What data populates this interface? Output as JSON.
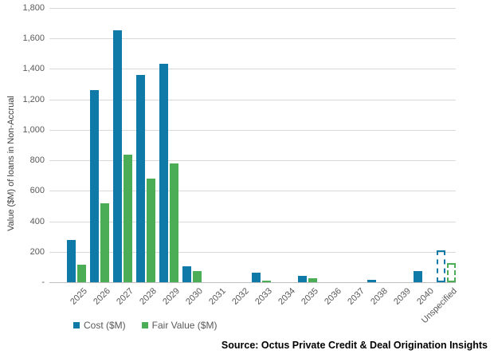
{
  "chart_data": {
    "type": "bar",
    "title": "",
    "xlabel": "",
    "ylabel": "Value ($M) of loans in Non-Accrual",
    "ylim": [
      0,
      1800
    ],
    "ytick_interval": 200,
    "ytick_labels_top_down": [
      "1,800",
      "1,600",
      "1,400",
      "1,200",
      "1,000",
      "800",
      "600",
      "400",
      "200",
      "-"
    ],
    "grid": true,
    "legend_position": "bottom-left",
    "categories": [
      "2025",
      "2026",
      "2027",
      "2028",
      "2029",
      "2030",
      "2031",
      "2032",
      "2033",
      "2034",
      "2035",
      "2036",
      "2037",
      "2038",
      "2039",
      "2040",
      "Unspecified"
    ],
    "series": [
      {
        "name": "Cost ($M)",
        "color": "#0f79a8",
        "values": [
          280,
          1260,
          1655,
          1360,
          1435,
          105,
          0,
          0,
          65,
          0,
          40,
          0,
          0,
          15,
          0,
          75,
          210
        ]
      },
      {
        "name": "Fair Value ($M)",
        "color": "#4bae56",
        "values": [
          115,
          520,
          835,
          680,
          780,
          75,
          0,
          0,
          10,
          0,
          25,
          0,
          0,
          0,
          0,
          0,
          125
        ]
      }
    ],
    "dashed_outline_category": "Unspecified"
  },
  "legend": {
    "cost_label": "Cost ($M)",
    "fair_value_label": "Fair Value ($M)"
  },
  "footer": {
    "source_label": "Source: Octus Private Credit & Deal Origination Insights"
  },
  "colors": {
    "cost": "#0f79a8",
    "fair_value": "#4bae56",
    "gridline": "#d9d9d9",
    "axis_text": "#595959"
  }
}
